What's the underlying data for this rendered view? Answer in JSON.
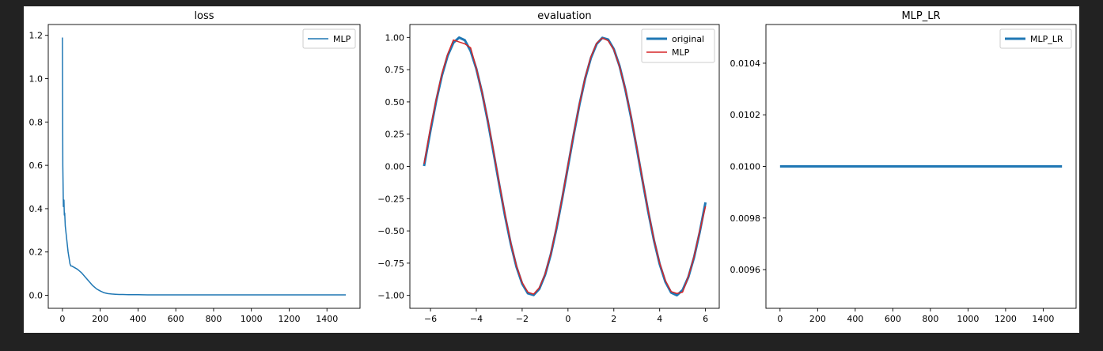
{
  "chart_data": [
    {
      "type": "line",
      "title": "loss",
      "xlabel": "",
      "ylabel": "",
      "xlim": [
        -75,
        1575
      ],
      "ylim": [
        -0.06,
        1.25
      ],
      "xticks": [
        0,
        200,
        400,
        600,
        800,
        1000,
        1200,
        1400
      ],
      "yticks": [
        0.0,
        0.2,
        0.4,
        0.6,
        0.8,
        1.0,
        1.2
      ],
      "xtick_labels": [
        "0",
        "200",
        "400",
        "600",
        "800",
        "1000",
        "1200",
        "1400"
      ],
      "ytick_labels": [
        "0.0",
        "0.2",
        "0.4",
        "0.6",
        "0.8",
        "1.0",
        "1.2"
      ],
      "grid": false,
      "legend": "upper right",
      "series": [
        {
          "name": "MLP",
          "color": "#1f77b4",
          "line_width": 1.5,
          "x": [
            0,
            2,
            5,
            8,
            10,
            12,
            15,
            20,
            30,
            40,
            45,
            50,
            60,
            70,
            80,
            100,
            120,
            140,
            160,
            180,
            200,
            220,
            240,
            260,
            280,
            300,
            320,
            350,
            400,
            450,
            500,
            600,
            700,
            800,
            900,
            1000,
            1100,
            1200,
            1300,
            1400,
            1500
          ],
          "y": [
            1.19,
            0.6,
            0.41,
            0.44,
            0.37,
            0.38,
            0.32,
            0.28,
            0.2,
            0.145,
            0.135,
            0.135,
            0.13,
            0.125,
            0.12,
            0.105,
            0.085,
            0.065,
            0.045,
            0.03,
            0.02,
            0.012,
            0.008,
            0.006,
            0.005,
            0.004,
            0.004,
            0.003,
            0.003,
            0.002,
            0.002,
            0.002,
            0.002,
            0.002,
            0.002,
            0.002,
            0.002,
            0.002,
            0.002,
            0.002,
            0.002
          ]
        }
      ]
    },
    {
      "type": "line",
      "title": "evaluation",
      "xlabel": "",
      "ylabel": "",
      "xlim": [
        -6.9,
        6.6
      ],
      "ylim": [
        -1.1,
        1.1
      ],
      "xticks": [
        -6,
        -4,
        -2,
        0,
        2,
        4,
        6
      ],
      "yticks": [
        -1.0,
        -0.75,
        -0.5,
        -0.25,
        0.0,
        0.25,
        0.5,
        0.75,
        1.0
      ],
      "xtick_labels": [
        "−6",
        "−4",
        "−2",
        "0",
        "2",
        "4",
        "6"
      ],
      "ytick_labels": [
        "−1.00",
        "−0.75",
        "−0.50",
        "−0.25",
        "0.00",
        "0.25",
        "0.50",
        "0.75",
        "1.00"
      ],
      "grid": false,
      "legend": "upper right",
      "series": [
        {
          "name": "original",
          "color": "#1f77b4",
          "line_width": 3,
          "x": [
            -6.28,
            -6.0,
            -5.75,
            -5.5,
            -5.25,
            -5.0,
            -4.75,
            -4.5,
            -4.25,
            -4.0,
            -3.75,
            -3.5,
            -3.25,
            -3.0,
            -2.75,
            -2.5,
            -2.25,
            -2.0,
            -1.75,
            -1.5,
            -1.25,
            -1.0,
            -0.75,
            -0.5,
            -0.25,
            0.0,
            0.25,
            0.5,
            0.75,
            1.0,
            1.25,
            1.5,
            1.75,
            2.0,
            2.25,
            2.5,
            2.75,
            3.0,
            3.25,
            3.5,
            3.75,
            4.0,
            4.25,
            4.5,
            4.75,
            5.0,
            5.25,
            5.5,
            5.75,
            6.0
          ],
          "y": [
            0.003,
            0.279,
            0.508,
            0.706,
            0.859,
            0.959,
            0.999,
            0.978,
            0.895,
            0.757,
            0.572,
            0.351,
            0.108,
            -0.141,
            -0.382,
            -0.598,
            -0.778,
            -0.909,
            -0.984,
            -0.997,
            -0.949,
            -0.841,
            -0.682,
            -0.479,
            -0.247,
            0.0,
            0.247,
            0.479,
            0.682,
            0.841,
            0.949,
            0.997,
            0.984,
            0.909,
            0.778,
            0.598,
            0.382,
            0.141,
            -0.108,
            -0.351,
            -0.572,
            -0.757,
            -0.895,
            -0.978,
            -0.999,
            -0.959,
            -0.859,
            -0.706,
            -0.508,
            -0.279
          ]
        },
        {
          "name": "MLP",
          "color": "#d62728",
          "line_width": 1.5,
          "x": [
            -6.28,
            -6.0,
            -5.75,
            -5.5,
            -5.25,
            -5.0,
            -4.75,
            -4.5,
            -4.25,
            -4.0,
            -3.75,
            -3.5,
            -3.25,
            -3.0,
            -2.75,
            -2.5,
            -2.25,
            -2.0,
            -1.75,
            -1.5,
            -1.25,
            -1.0,
            -0.75,
            -0.5,
            -0.25,
            0.0,
            0.25,
            0.5,
            0.75,
            1.0,
            1.25,
            1.5,
            1.75,
            2.0,
            2.25,
            2.5,
            2.75,
            3.0,
            3.25,
            3.5,
            3.75,
            4.0,
            4.25,
            4.5,
            4.75,
            5.0,
            5.25,
            5.5,
            5.75,
            6.0
          ],
          "y": [
            0.02,
            0.3,
            0.52,
            0.72,
            0.87,
            0.98,
            0.965,
            0.95,
            0.92,
            0.76,
            0.575,
            0.36,
            0.12,
            -0.13,
            -0.37,
            -0.59,
            -0.77,
            -0.9,
            -0.975,
            -0.99,
            -0.94,
            -0.835,
            -0.675,
            -0.47,
            -0.24,
            0.01,
            0.255,
            0.485,
            0.69,
            0.85,
            0.955,
            0.995,
            0.975,
            0.905,
            0.775,
            0.6,
            0.39,
            0.15,
            -0.1,
            -0.345,
            -0.565,
            -0.75,
            -0.885,
            -0.97,
            -0.985,
            -0.975,
            -0.855,
            -0.7,
            -0.5,
            -0.31
          ]
        }
      ]
    },
    {
      "type": "line",
      "title": "MLP_LR",
      "xlabel": "",
      "ylabel": "",
      "xlim": [
        -75,
        1575
      ],
      "ylim": [
        0.00945,
        0.01055
      ],
      "xticks": [
        0,
        200,
        400,
        600,
        800,
        1000,
        1200,
        1400
      ],
      "yticks": [
        0.0096,
        0.0098,
        0.01,
        0.0102,
        0.0104
      ],
      "xtick_labels": [
        "0",
        "200",
        "400",
        "600",
        "800",
        "1000",
        "1200",
        "1400"
      ],
      "ytick_labels": [
        "0.0096",
        "0.0098",
        "0.0100",
        "0.0102",
        "0.0104"
      ],
      "grid": false,
      "legend": "upper right",
      "series": [
        {
          "name": "MLP_LR",
          "color": "#1f77b4",
          "line_width": 3,
          "x": [
            0,
            1500
          ],
          "y": [
            0.01,
            0.01
          ]
        }
      ]
    }
  ]
}
